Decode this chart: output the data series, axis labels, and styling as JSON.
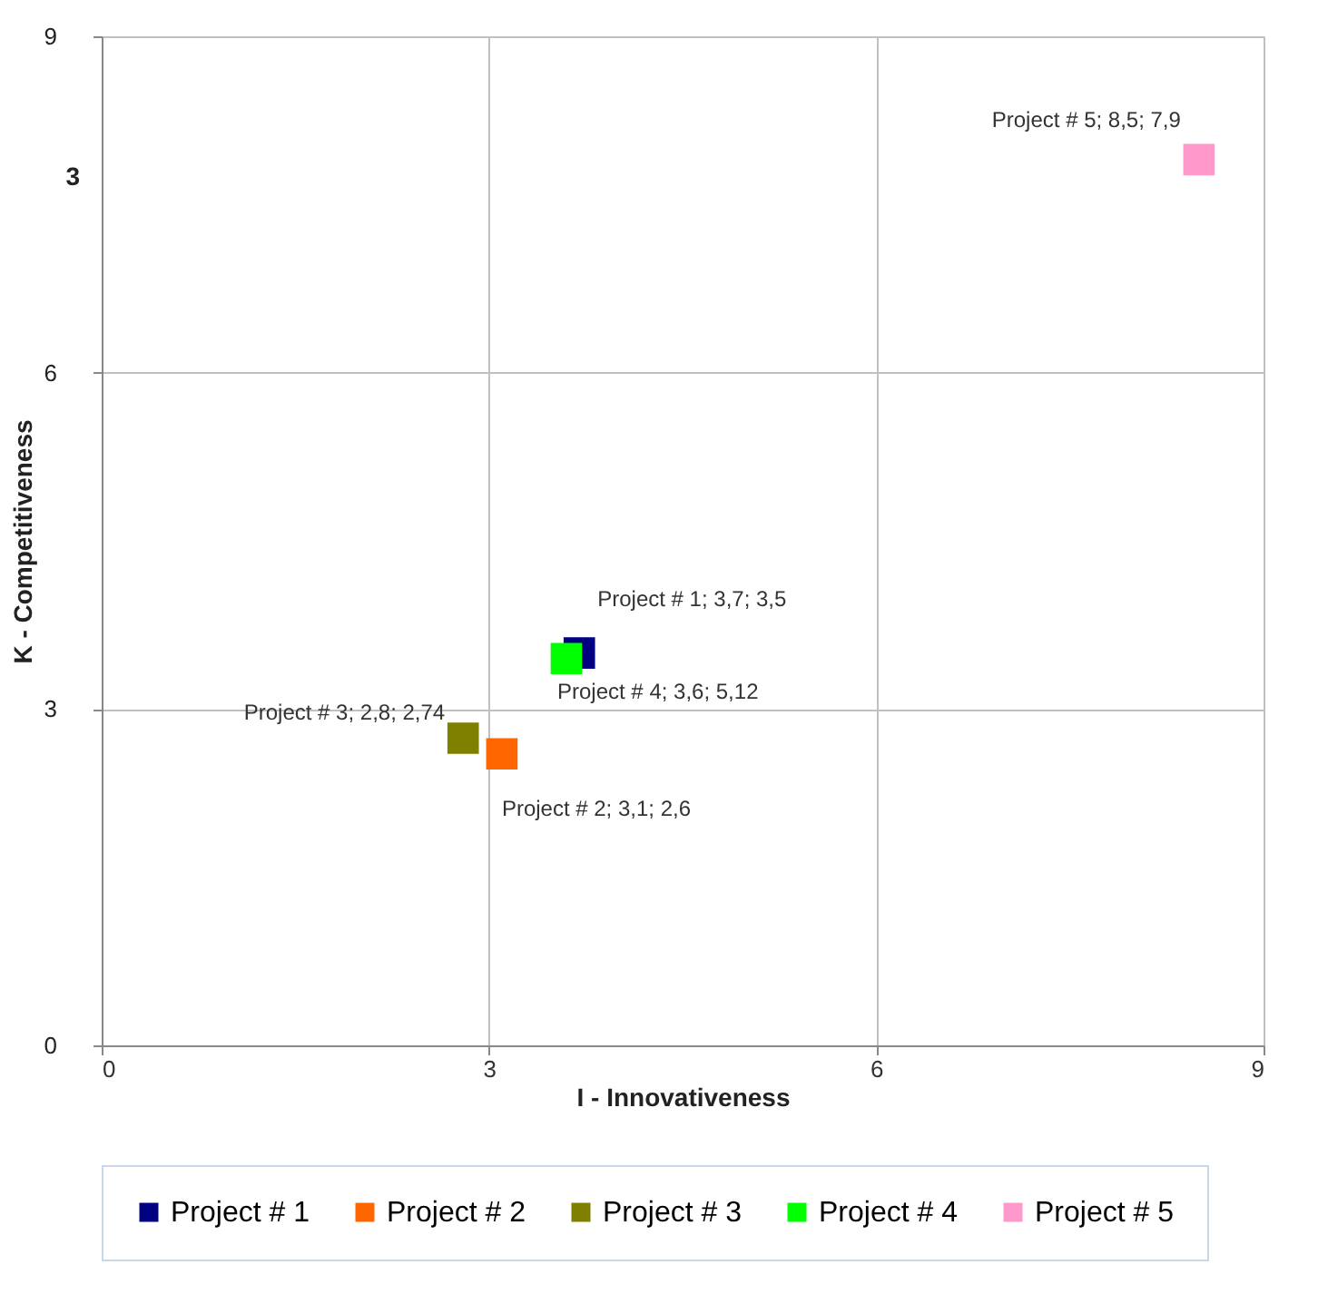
{
  "chart_data": {
    "type": "scatter",
    "xlabel": "I - Innovativeness",
    "ylabel": "K - Competitiveness",
    "xlim": [
      0,
      9
    ],
    "ylim": [
      0,
      9
    ],
    "xticks": [
      0,
      3,
      6,
      9
    ],
    "yticks": [
      0,
      3,
      6,
      9
    ],
    "grid": true,
    "legend": "bottom",
    "marker": "square",
    "series": [
      {
        "name": "Project # 1",
        "color": "#000080",
        "x": [
          3.7
        ],
        "values": [
          3.5
        ]
      },
      {
        "name": "Project # 2",
        "color": "#ff6600",
        "x": [
          3.1
        ],
        "values": [
          2.6
        ]
      },
      {
        "name": "Project # 3",
        "color": "#808000",
        "x": [
          2.8
        ],
        "values": [
          2.74
        ]
      },
      {
        "name": "Project # 4",
        "color": "#00ff00",
        "x": [
          3.6
        ],
        "values": [
          3.45
        ]
      },
      {
        "name": "Project # 5",
        "color": "#ff99cc",
        "x": [
          8.5
        ],
        "values": [
          7.9
        ]
      }
    ],
    "annotations": [
      "3",
      {
        "text": "Project # 1; 3,7; 3,5",
        "x": 3.7,
        "y": 3.5
      },
      {
        "text": "Project # 2; 3,1; 2,6",
        "x": 3.1,
        "y": 2.6
      },
      {
        "text": "Project # 3; 2,8; 2,74",
        "x": 2.8,
        "y": 2.74
      },
      {
        "text": "Project # 4; 3,6; 5,12",
        "x": 3.6,
        "y": 3.45
      },
      {
        "text": "Project # 5; 8,5; 7,9",
        "x": 8.5,
        "y": 7.9
      }
    ]
  }
}
